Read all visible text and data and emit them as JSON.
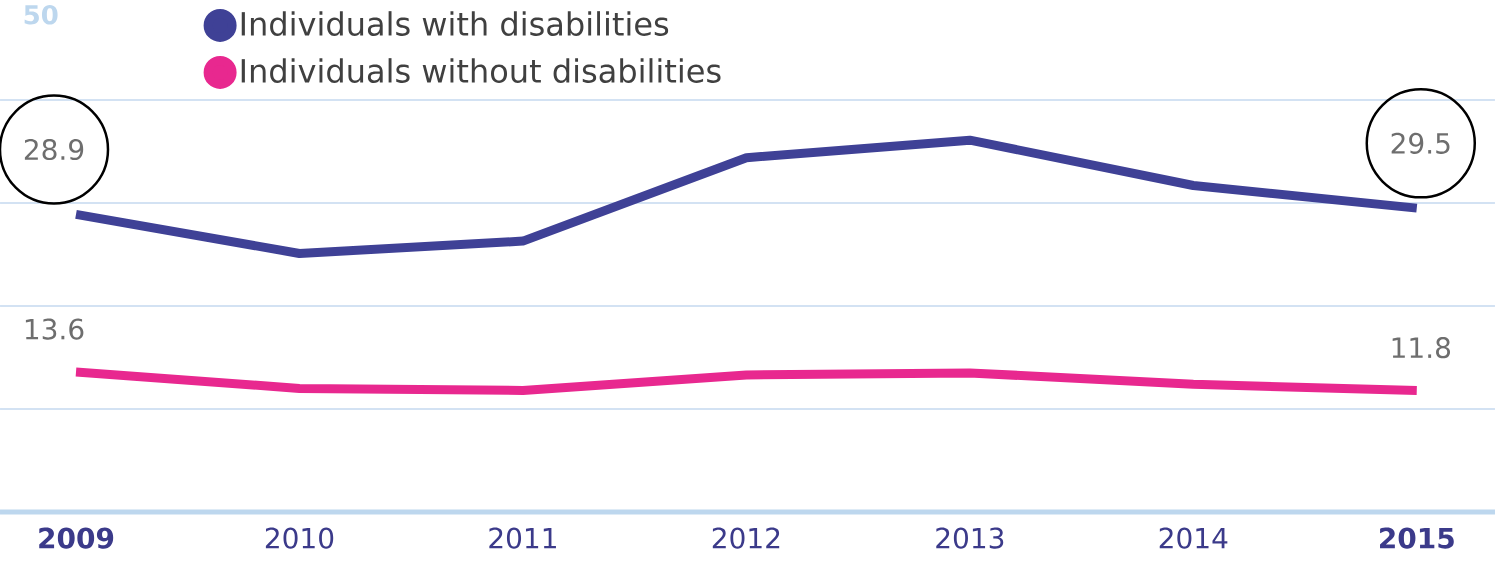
{
  "chart_data": {
    "type": "line",
    "categories": [
      "2009",
      "2010",
      "2011",
      "2012",
      "2013",
      "2014",
      "2015"
    ],
    "series": [
      {
        "name": "Individuals with disabilities",
        "color": "#3f4196",
        "values": [
          28.9,
          25.1,
          26.3,
          34.4,
          36.1,
          31.7,
          29.5
        ],
        "value_labels": [
          "28.9",
          null,
          null,
          null,
          null,
          null,
          "29.5"
        ]
      },
      {
        "name": "Individuals without disabilities",
        "color": "#e8288f",
        "values": [
          13.6,
          12.0,
          11.8,
          13.3,
          13.5,
          12.4,
          11.8
        ],
        "value_labels": [
          "13.6",
          null,
          null,
          null,
          null,
          null,
          "11.8"
        ]
      }
    ],
    "ylim": [
      0,
      50
    ],
    "yticks": [
      {
        "value": 10,
        "label": null
      },
      {
        "value": 20,
        "label": null
      },
      {
        "value": 30,
        "label": null
      },
      {
        "value": 40,
        "label": null
      },
      {
        "value": 50,
        "label": null
      }
    ],
    "annotations": [
      "50"
    ],
    "grid": "y",
    "legend": "top",
    "marker": "none",
    "line_style": "solid"
  }
}
